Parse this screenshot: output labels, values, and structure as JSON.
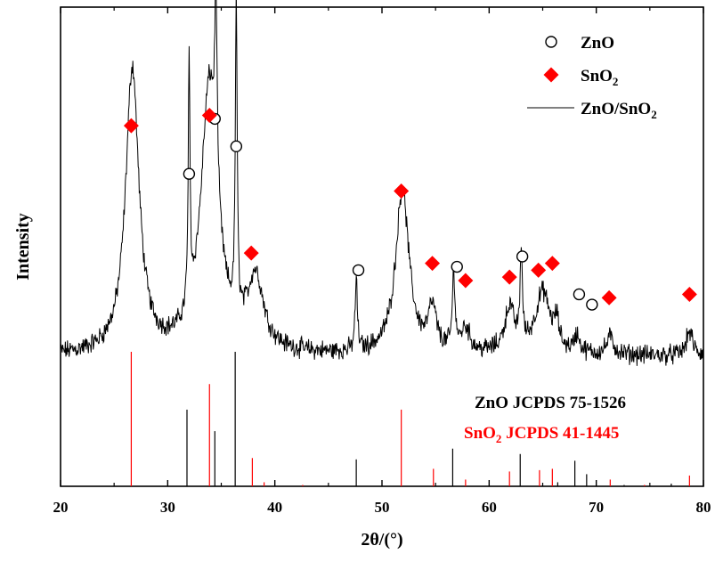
{
  "chart_data": {
    "type": "line",
    "xlabel": "2θ/(°)",
    "ylabel": "Intensity",
    "xlim": [
      20,
      80
    ],
    "x_ticks": [
      "20",
      "30",
      "40",
      "50",
      "60",
      "70",
      "80"
    ],
    "colors": {
      "axis": "#000000",
      "sno2": "#ff0000",
      "zno": "#000000",
      "pattern": "#000000"
    },
    "legend": {
      "placement": "top-right",
      "entries": [
        {
          "symbol": "circle",
          "label": "ZnO"
        },
        {
          "symbol": "diamond",
          "label": "SnO2",
          "label_main": "SnO",
          "label_sub": "2"
        },
        {
          "symbol": "line",
          "label": "ZnO/SnO2",
          "label_main": "ZnO/SnO",
          "label_sub": "2"
        }
      ]
    },
    "series": [
      {
        "name": "ZnO/SnO2",
        "style": "noisy-line",
        "baseline": 0.12,
        "noise": 0.022,
        "peaks": [
          {
            "x": 26.7,
            "h": 0.83,
            "w": 0.75
          },
          {
            "x": 32.0,
            "h": 0.7,
            "w": 0.1
          },
          {
            "x": 33.9,
            "h": 0.78,
            "w": 0.95
          },
          {
            "x": 34.5,
            "h": 0.55,
            "w": 0.12
          },
          {
            "x": 36.4,
            "h": 0.92,
            "w": 0.1
          },
          {
            "x": 38.2,
            "h": 0.21,
            "w": 0.9
          },
          {
            "x": 47.6,
            "h": 0.21,
            "w": 0.12
          },
          {
            "x": 51.9,
            "h": 0.48,
            "w": 0.75
          },
          {
            "x": 54.7,
            "h": 0.12,
            "w": 0.45
          },
          {
            "x": 56.7,
            "h": 0.22,
            "w": 0.15
          },
          {
            "x": 57.8,
            "h": 0.07,
            "w": 0.5
          },
          {
            "x": 61.9,
            "h": 0.13,
            "w": 0.55
          },
          {
            "x": 63.0,
            "h": 0.28,
            "w": 0.12
          },
          {
            "x": 65.0,
            "h": 0.18,
            "w": 0.85
          },
          {
            "x": 66.3,
            "h": 0.07,
            "w": 0.25
          },
          {
            "x": 68.2,
            "h": 0.05,
            "w": 0.3
          },
          {
            "x": 71.3,
            "h": 0.05,
            "w": 0.4
          },
          {
            "x": 78.7,
            "h": 0.07,
            "w": 0.35
          }
        ]
      }
    ],
    "markers": {
      "zno": [
        {
          "x": 32.0,
          "y": 0.65
        },
        {
          "x": 34.4,
          "y": 0.81
        },
        {
          "x": 36.4,
          "y": 0.73
        },
        {
          "x": 47.8,
          "y": 0.37
        },
        {
          "x": 57.0,
          "y": 0.38
        },
        {
          "x": 63.1,
          "y": 0.41
        },
        {
          "x": 68.4,
          "y": 0.3
        },
        {
          "x": 69.6,
          "y": 0.27
        }
      ],
      "sno2": [
        {
          "x": 26.6,
          "y": 0.79
        },
        {
          "x": 33.9,
          "y": 0.82
        },
        {
          "x": 37.8,
          "y": 0.42
        },
        {
          "x": 51.8,
          "y": 0.6
        },
        {
          "x": 54.7,
          "y": 0.39
        },
        {
          "x": 57.8,
          "y": 0.34
        },
        {
          "x": 61.9,
          "y": 0.35
        },
        {
          "x": 64.6,
          "y": 0.37
        },
        {
          "x": 65.9,
          "y": 0.39
        },
        {
          "x": 71.2,
          "y": 0.29
        },
        {
          "x": 78.7,
          "y": 0.3
        }
      ]
    },
    "reference_patterns": [
      {
        "label": "ZnO JCPDS  75-1526",
        "label_main": "ZnO JCPDS  75-1526",
        "color": "#000000",
        "lines": [
          {
            "x": 31.8,
            "h": 0.57
          },
          {
            "x": 34.4,
            "h": 0.41
          },
          {
            "x": 36.3,
            "h": 1.0
          },
          {
            "x": 47.6,
            "h": 0.2
          },
          {
            "x": 56.6,
            "h": 0.28
          },
          {
            "x": 62.9,
            "h": 0.24
          },
          {
            "x": 66.4,
            "h": 0.03
          },
          {
            "x": 68.0,
            "h": 0.19
          },
          {
            "x": 69.1,
            "h": 0.09
          },
          {
            "x": 72.6,
            "h": 0.01
          },
          {
            "x": 77.0,
            "h": 0.02
          }
        ]
      },
      {
        "label": "SnO2 JCPDS  41-1445",
        "label_main": "SnO",
        "label_sub": "2",
        "label_tail": " JCPDS  41-1445",
        "color": "#ff0000",
        "lines": [
          {
            "x": 26.6,
            "h": 1.0
          },
          {
            "x": 33.9,
            "h": 0.76
          },
          {
            "x": 37.9,
            "h": 0.21
          },
          {
            "x": 39.0,
            "h": 0.03
          },
          {
            "x": 42.6,
            "h": 0.01
          },
          {
            "x": 51.8,
            "h": 0.57
          },
          {
            "x": 54.8,
            "h": 0.13
          },
          {
            "x": 57.8,
            "h": 0.05
          },
          {
            "x": 61.9,
            "h": 0.11
          },
          {
            "x": 64.7,
            "h": 0.12
          },
          {
            "x": 65.9,
            "h": 0.13
          },
          {
            "x": 71.3,
            "h": 0.05
          },
          {
            "x": 74.5,
            "h": 0.01
          },
          {
            "x": 78.7,
            "h": 0.08
          }
        ]
      }
    ]
  }
}
